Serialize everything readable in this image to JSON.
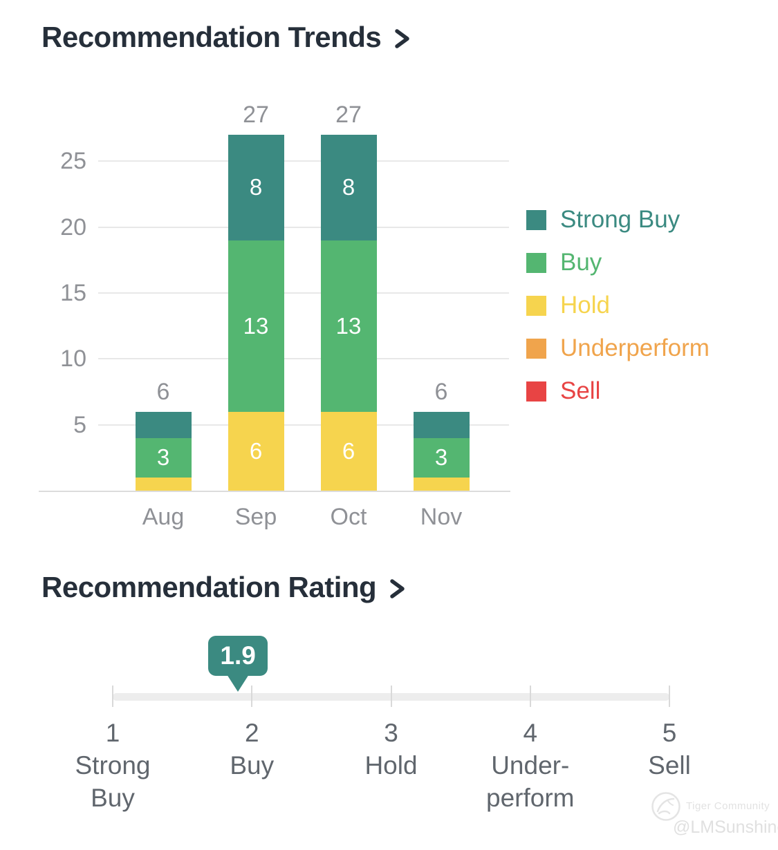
{
  "colors": {
    "strong_buy": "#3b8a81",
    "buy": "#54b671",
    "hold": "#f6d44e",
    "underperform": "#f0a44c",
    "sell": "#e84444",
    "title_text": "#262f3a",
    "axis_text": "#8f9196",
    "rating_text": "#60666d"
  },
  "trends_section": {
    "title": "Recommendation Trends"
  },
  "chart_data": {
    "type": "bar",
    "stacked": true,
    "title": "Recommendation Trends",
    "categories": [
      "Aug",
      "Sep",
      "Oct",
      "Nov"
    ],
    "series": [
      {
        "name": "Strong Buy",
        "color": "#3b8a81",
        "values": [
          2,
          8,
          8,
          2
        ]
      },
      {
        "name": "Buy",
        "color": "#54b671",
        "values": [
          3,
          13,
          13,
          3
        ]
      },
      {
        "name": "Hold",
        "color": "#f6d44e",
        "values": [
          1,
          6,
          6,
          1
        ]
      },
      {
        "name": "Underperform",
        "color": "#f0a44c",
        "values": [
          0,
          0,
          0,
          0
        ]
      },
      {
        "name": "Sell",
        "color": "#e84444",
        "values": [
          0,
          0,
          0,
          0
        ]
      }
    ],
    "totals": [
      6,
      27,
      27,
      6
    ],
    "segment_labels_shown": [
      [
        "3"
      ],
      [
        "6",
        "13",
        "8"
      ],
      [
        "6",
        "13",
        "8"
      ],
      [
        "3"
      ]
    ],
    "yticks": [
      5,
      10,
      15,
      20,
      25
    ],
    "ylim": [
      0,
      27
    ],
    "grid": true,
    "legend_position": "right"
  },
  "rating_section": {
    "title": "Recommendation Rating",
    "value": "1.9",
    "scale_min": 1,
    "scale_max": 5,
    "ticks": [
      {
        "number": "1",
        "label": "Strong\nBuy"
      },
      {
        "number": "2",
        "label": "Buy"
      },
      {
        "number": "3",
        "label": "Hold"
      },
      {
        "number": "4",
        "label": "Under-\nperform"
      },
      {
        "number": "5",
        "label": "Sell"
      }
    ]
  },
  "watermark": {
    "brand": "Tiger Community",
    "handle": "@LMSunshine"
  }
}
